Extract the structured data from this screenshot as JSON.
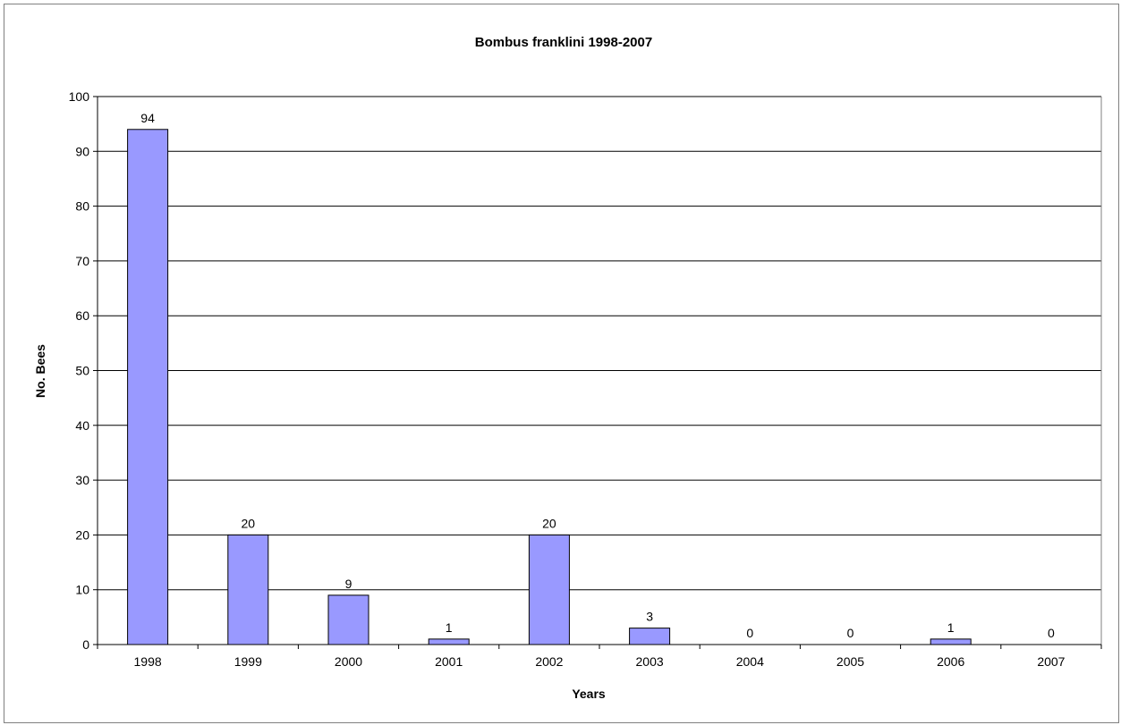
{
  "chart_data": {
    "type": "bar",
    "title": "Bombus franklini 1998-2007",
    "xlabel": "Years",
    "ylabel": "No. Bees",
    "categories": [
      "1998",
      "1999",
      "2000",
      "2001",
      "2002",
      "2003",
      "2004",
      "2005",
      "2006",
      "2007"
    ],
    "values": [
      94,
      20,
      9,
      1,
      20,
      3,
      0,
      0,
      1,
      0
    ],
    "ylim": [
      0,
      100
    ],
    "yticks": [
      0,
      10,
      20,
      30,
      40,
      50,
      60,
      70,
      80,
      90,
      100
    ],
    "grid": true,
    "legend": "none",
    "data_labels": true,
    "bar_color": "#9999ff",
    "bar_stroke": "#000000"
  }
}
